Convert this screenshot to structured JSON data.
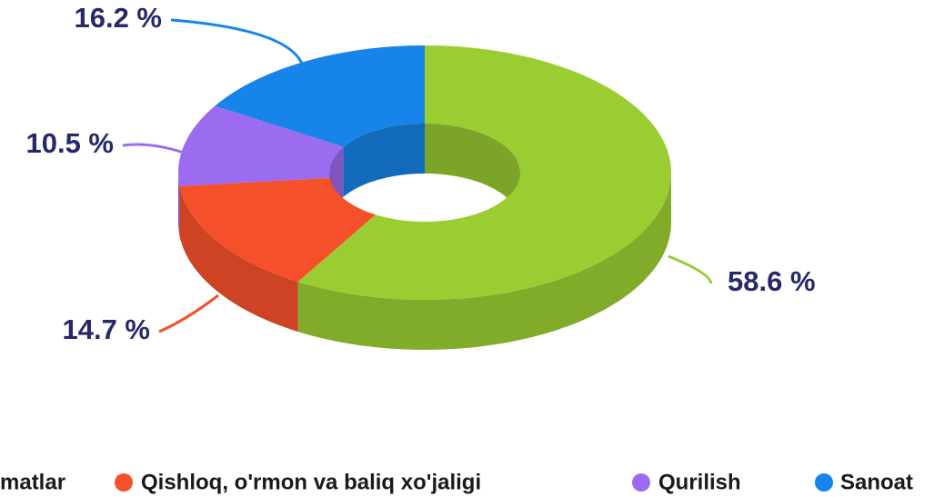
{
  "chart_data": {
    "type": "donut3d",
    "categories": [
      "matlar",
      "Qishloq, o'rmon va baliq xo'jaligi",
      "Qurilish",
      "Sanoat"
    ],
    "values": [
      58.6,
      14.7,
      10.5,
      16.2
    ],
    "value_labels": [
      "58.6 %",
      "14.7 %",
      "10.5 %",
      "16.2 %"
    ],
    "colors": [
      "#9acd32",
      "#f4502a",
      "#9c6cf0",
      "#1684e8"
    ]
  }
}
